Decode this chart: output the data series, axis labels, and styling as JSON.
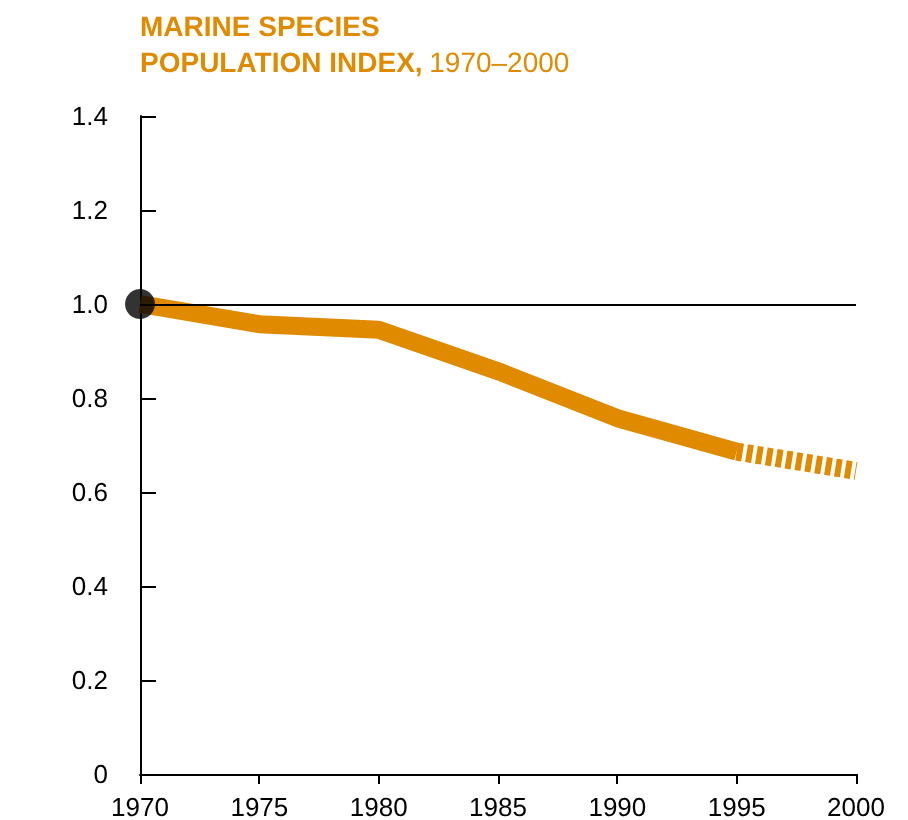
{
  "chart_data": {
    "type": "line",
    "title": "MARINE SPECIES\nPOPULATION INDEX,",
    "subtitle": "1970–2000",
    "xlim": [
      1970,
      2000
    ],
    "xticks": [
      1970,
      1975,
      1980,
      1985,
      1990,
      1995,
      2000
    ],
    "ylim": [
      0,
      1.4
    ],
    "yticks": [
      0,
      0.2,
      0.4,
      0.6,
      0.8,
      {
        "value": 1,
        "label": "1.0"
      },
      1.2,
      1.4
    ],
    "grid": false,
    "ref_lines": [
      {
        "axis": "y",
        "value": 1,
        "color": "#000000"
      }
    ],
    "series": [
      {
        "color": "#e08a00",
        "line_style": "solid",
        "marker": "none",
        "x": [
          1970,
          1975,
          1980,
          1985,
          1990,
          1995
        ],
        "values": [
          1.0,
          0.957,
          0.945,
          0.857,
          0.757,
          0.686
        ]
      },
      {
        "color": "#e08a00",
        "line_style": "dashed",
        "marker": "none",
        "x": [
          1995,
          2000
        ],
        "values": [
          0.686,
          0.645
        ]
      },
      {
        "type": "scatter",
        "color": "#000000",
        "marker": "circle",
        "x": [
          1970
        ],
        "values": [
          1.0
        ]
      }
    ]
  }
}
